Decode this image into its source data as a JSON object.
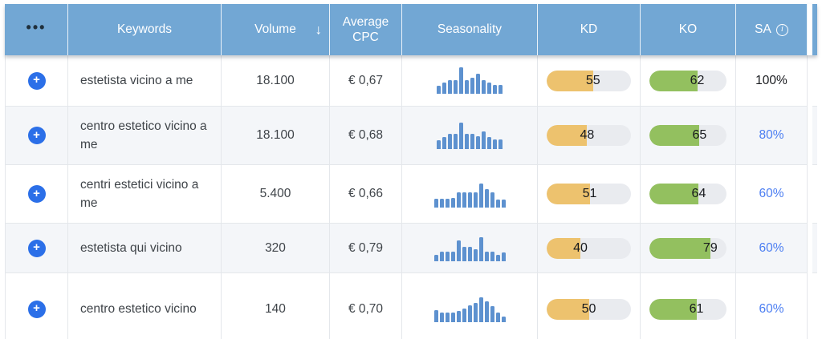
{
  "header": {
    "menu_icon": "•••",
    "keywords": "Keywords",
    "volume": "Volume",
    "sort_icon": "↓",
    "avg_cpc": "Average CPC",
    "seasonality": "Seasonality",
    "kd": "KD",
    "ko": "KO",
    "sa": "SA",
    "info_icon": "i"
  },
  "table": {
    "rows": [
      {
        "keyword": "estetista vicino a me",
        "volume": "18.100",
        "avg_cpc": "€ 0,67",
        "seasonality": [
          30,
          42,
          52,
          52,
          100,
          52,
          62,
          75,
          52,
          42,
          32,
          32
        ],
        "kd": 55,
        "ko": 62,
        "sa": "100%",
        "sa_link": false
      },
      {
        "keyword": "centro estetico vicino a me",
        "volume": "18.100",
        "avg_cpc": "€ 0,68",
        "seasonality": [
          32,
          45,
          55,
          55,
          100,
          55,
          55,
          48,
          65,
          45,
          35,
          35
        ],
        "kd": 48,
        "ko": 65,
        "sa": "80%",
        "sa_link": true
      },
      {
        "keyword": "centri estetici vicino a me",
        "volume": "5.400",
        "avg_cpc": "€ 0,66",
        "seasonality": [
          33,
          33,
          33,
          36,
          55,
          55,
          55,
          55,
          90,
          68,
          55,
          28,
          30
        ],
        "kd": 51,
        "ko": 64,
        "sa": "60%",
        "sa_link": true
      },
      {
        "keyword": "estetista qui vicino",
        "volume": "320",
        "avg_cpc": "€ 0,79",
        "seasonality": [
          25,
          35,
          35,
          35,
          80,
          55,
          55,
          45,
          90,
          35,
          35,
          25,
          32
        ],
        "kd": 40,
        "ko": 79,
        "sa": "60%",
        "sa_link": true
      },
      {
        "keyword": "centro estetico vicino",
        "volume": "140",
        "avg_cpc": "€ 0,70",
        "seasonality": [
          45,
          35,
          35,
          35,
          42,
          52,
          65,
          72,
          95,
          80,
          60,
          35,
          20
        ],
        "kd": 50,
        "ko": 61,
        "sa": "60%",
        "sa_link": true
      }
    ]
  },
  "colors": {
    "header_bg": "#72a7d4",
    "header_text": "#ffffff",
    "row_alt": "#f4f6f9",
    "row_bg": "#ffffff",
    "border": "#e4e7eb",
    "kd_fill": "#edc26e",
    "ko_fill": "#93c05f",
    "track": "#e9ebef",
    "bar_blue": "#5d91cf",
    "plus_blue": "#2b6fe8",
    "link_blue": "#4a7df2",
    "text": "#3f4449",
    "value_text": "#17191d"
  }
}
